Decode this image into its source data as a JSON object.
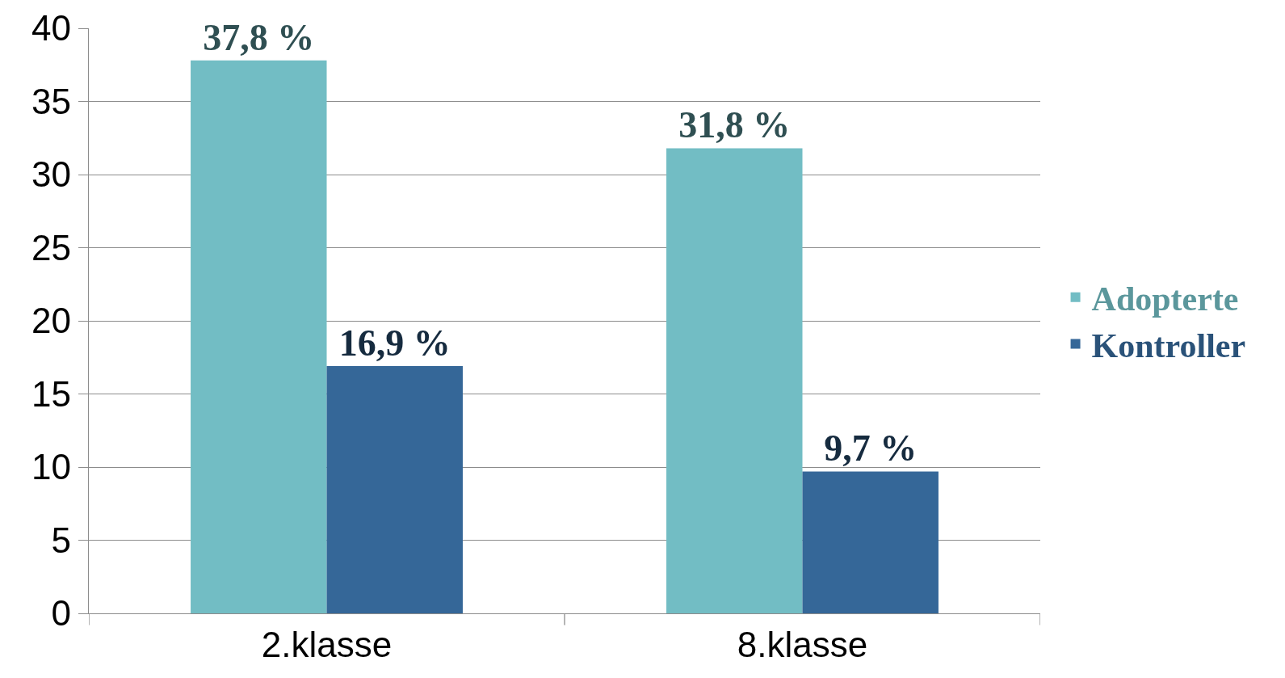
{
  "chart_data": {
    "type": "bar",
    "categories": [
      "2.klasse",
      "8.klasse"
    ],
    "series": [
      {
        "name": "Adopterte",
        "color": "#72bdc4",
        "values": [
          37.8,
          31.8
        ],
        "value_labels": [
          "37,8 %",
          "31,8 %"
        ]
      },
      {
        "name": "Kontroller",
        "color": "#356798",
        "values": [
          16.9,
          9.7
        ],
        "value_labels": [
          "16,9 %",
          "9,7 %"
        ]
      }
    ],
    "ylim": [
      0,
      40
    ],
    "yticks": [
      0,
      5,
      10,
      15,
      20,
      25,
      30,
      35,
      40
    ],
    "grid": "y",
    "legend": "right"
  }
}
